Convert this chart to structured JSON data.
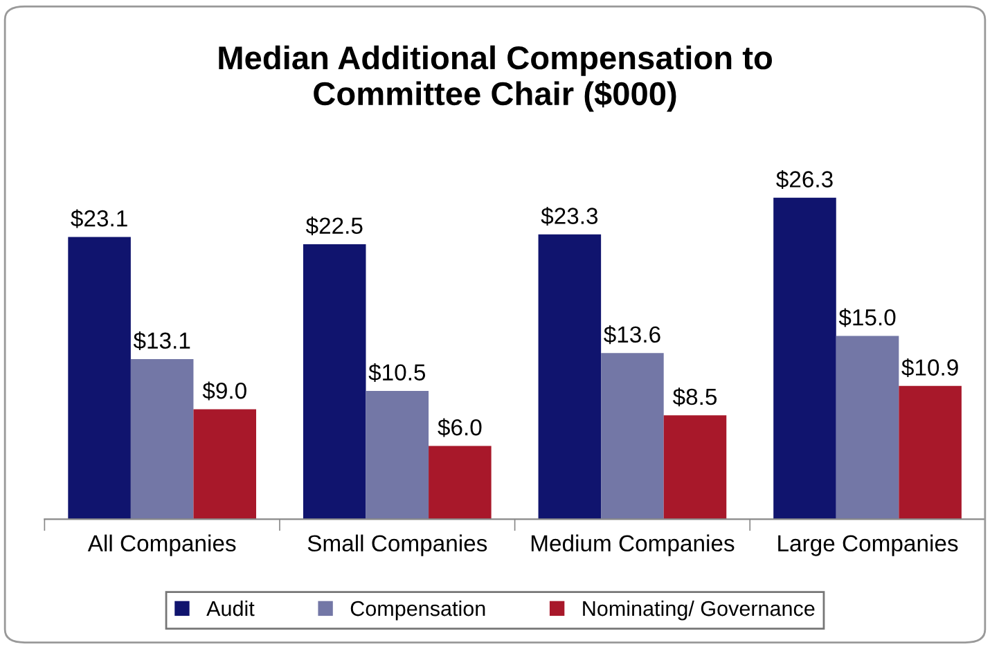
{
  "chart_data": {
    "type": "bar",
    "title": "Median Additional Compensation to\nCommittee Chair ($000)",
    "categories": [
      "All Companies",
      "Small Companies",
      "Medium Companies",
      "Large Companies"
    ],
    "series": [
      {
        "name": "Audit",
        "color": "#10146e",
        "values": [
          23.1,
          22.5,
          23.3,
          26.3
        ],
        "value_labels": [
          "$23.1",
          "$22.5",
          "$23.3",
          "$26.3"
        ]
      },
      {
        "name": "Compensation",
        "color": "#7377a6",
        "values": [
          13.1,
          10.5,
          13.6,
          15.0
        ],
        "value_labels": [
          "$13.1",
          "$10.5",
          "$13.6",
          "$15.0"
        ]
      },
      {
        "name": "Nominating/ Governance",
        "color": "#a8182a",
        "values": [
          9.0,
          6.0,
          8.5,
          10.9
        ],
        "value_labels": [
          "$9.0",
          "$6.0",
          "$8.5",
          "$10.9"
        ]
      }
    ],
    "legend": "bottom",
    "grid": false
  }
}
